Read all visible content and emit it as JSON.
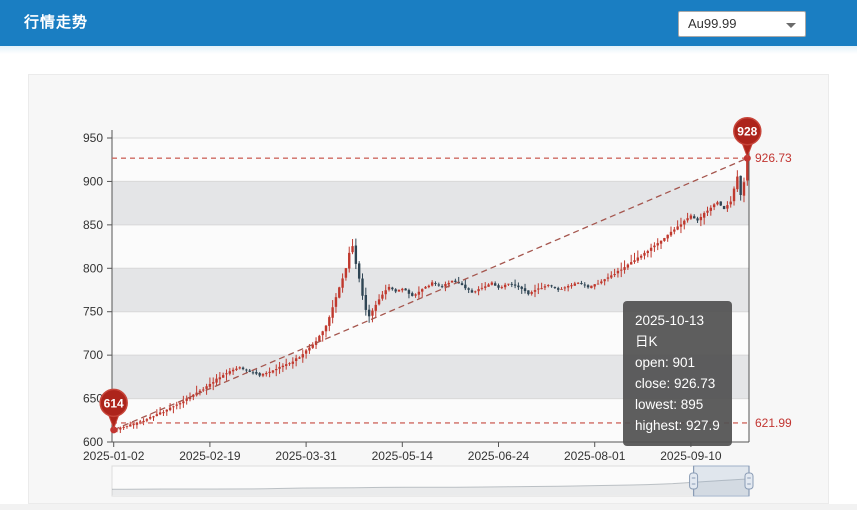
{
  "header": {
    "title": "行情走势",
    "bg_color": "#1a7ec2"
  },
  "toolbar": {
    "instrument_select": {
      "value": "Au99.99"
    }
  },
  "tooltip": {
    "date": "2025-10-13",
    "series": "日K",
    "lines": [
      "open: 901",
      "close: 926.73",
      "lowest: 895",
      "highest: 927.9"
    ]
  },
  "chart_data": {
    "type": "candlestick",
    "title": "",
    "xlabel": "",
    "ylabel": "",
    "ylim": [
      600,
      950
    ],
    "y_ticks": [
      600,
      650,
      700,
      750,
      800,
      850,
      900,
      950
    ],
    "x_ticks": [
      "2025-01-02",
      "2025-02-19",
      "2025-03-31",
      "2025-05-14",
      "2025-06-24",
      "2025-08-01",
      "2025-09-10"
    ],
    "x_tick_indices": [
      0,
      29,
      58,
      87,
      116,
      145,
      174
    ],
    "n_points": 192,
    "grid": true,
    "legend_position": "none",
    "close_anchors": [
      [
        0,
        614
      ],
      [
        3,
        617
      ],
      [
        6,
        621
      ],
      [
        9,
        625
      ],
      [
        12,
        630
      ],
      [
        15,
        635
      ],
      [
        18,
        641
      ],
      [
        21,
        647
      ],
      [
        24,
        654
      ],
      [
        27,
        661
      ],
      [
        29,
        667
      ],
      [
        32,
        675
      ],
      [
        35,
        682
      ],
      [
        38,
        686
      ],
      [
        41,
        681
      ],
      [
        44,
        677
      ],
      [
        47,
        680
      ],
      [
        50,
        686
      ],
      [
        53,
        691
      ],
      [
        56,
        698
      ],
      [
        58,
        705
      ],
      [
        61,
        716
      ],
      [
        64,
        734
      ],
      [
        66,
        755
      ],
      [
        68,
        778
      ],
      [
        70,
        800
      ],
      [
        71,
        818
      ],
      [
        72,
        826
      ],
      [
        73,
        805
      ],
      [
        74,
        788
      ],
      [
        75,
        768
      ],
      [
        76,
        752
      ],
      [
        77,
        745
      ],
      [
        79,
        758
      ],
      [
        81,
        770
      ],
      [
        83,
        779
      ],
      [
        85,
        773
      ],
      [
        87,
        777
      ],
      [
        90,
        768
      ],
      [
        93,
        776
      ],
      [
        96,
        783
      ],
      [
        99,
        779
      ],
      [
        102,
        786
      ],
      [
        105,
        780
      ],
      [
        108,
        772
      ],
      [
        111,
        778
      ],
      [
        114,
        783
      ],
      [
        116,
        777
      ],
      [
        119,
        783
      ],
      [
        122,
        779
      ],
      [
        125,
        771
      ],
      [
        128,
        776
      ],
      [
        131,
        781
      ],
      [
        134,
        775
      ],
      [
        137,
        779
      ],
      [
        140,
        783
      ],
      [
        143,
        778
      ],
      [
        145,
        781
      ],
      [
        148,
        787
      ],
      [
        151,
        794
      ],
      [
        154,
        801
      ],
      [
        157,
        809
      ],
      [
        160,
        817
      ],
      [
        163,
        826
      ],
      [
        166,
        835
      ],
      [
        169,
        845
      ],
      [
        172,
        854
      ],
      [
        174,
        861
      ],
      [
        176,
        855
      ],
      [
        178,
        863
      ],
      [
        180,
        870
      ],
      [
        182,
        876
      ],
      [
        184,
        869
      ],
      [
        186,
        877
      ],
      [
        187,
        892
      ],
      [
        188,
        906
      ],
      [
        189,
        885
      ],
      [
        190,
        899
      ],
      [
        191,
        926.73
      ]
    ],
    "first_candle": {
      "open": 616,
      "close": 613.5,
      "low": 612,
      "high": 619
    },
    "last_candle": {
      "open": 901,
      "close": 926.73,
      "low": 895,
      "high": 927.9
    },
    "markers": {
      "max_pin_label": "928",
      "max_value": 926.73,
      "max_value_label": "926.73",
      "min_pin_label": "614",
      "min_value": 614,
      "low_line_value": 621.99,
      "low_line_label": "621.99"
    },
    "colors": {
      "up": "#c0392e",
      "down": "#2f4554",
      "pin_fill": "#ad241b",
      "pin_stroke": "#c7453a",
      "dashed_h": "#cf6a62",
      "dashed_diag": "#a5564e",
      "dot": "#c23531",
      "label_red": "#c23531",
      "axis": "#555555",
      "tick_text": "#333333",
      "grid_line": "#d8d8d8",
      "band_light": "rgba(252,252,252,0.75)",
      "band_dark": "rgba(196,199,204,0.38)"
    },
    "navigator": {
      "profile": [
        [
          0,
          0.22
        ],
        [
          0.08,
          0.23
        ],
        [
          0.16,
          0.23
        ],
        [
          0.24,
          0.24
        ],
        [
          0.3,
          0.27
        ],
        [
          0.38,
          0.28
        ],
        [
          0.46,
          0.3
        ],
        [
          0.54,
          0.3
        ],
        [
          0.62,
          0.32
        ],
        [
          0.7,
          0.34
        ],
        [
          0.78,
          0.37
        ],
        [
          0.84,
          0.4
        ],
        [
          0.88,
          0.44
        ],
        [
          0.92,
          0.5
        ],
        [
          0.96,
          0.56
        ],
        [
          1,
          0.62
        ]
      ],
      "window_start_frac": 0.913,
      "window_end_frac": 1.0
    }
  }
}
